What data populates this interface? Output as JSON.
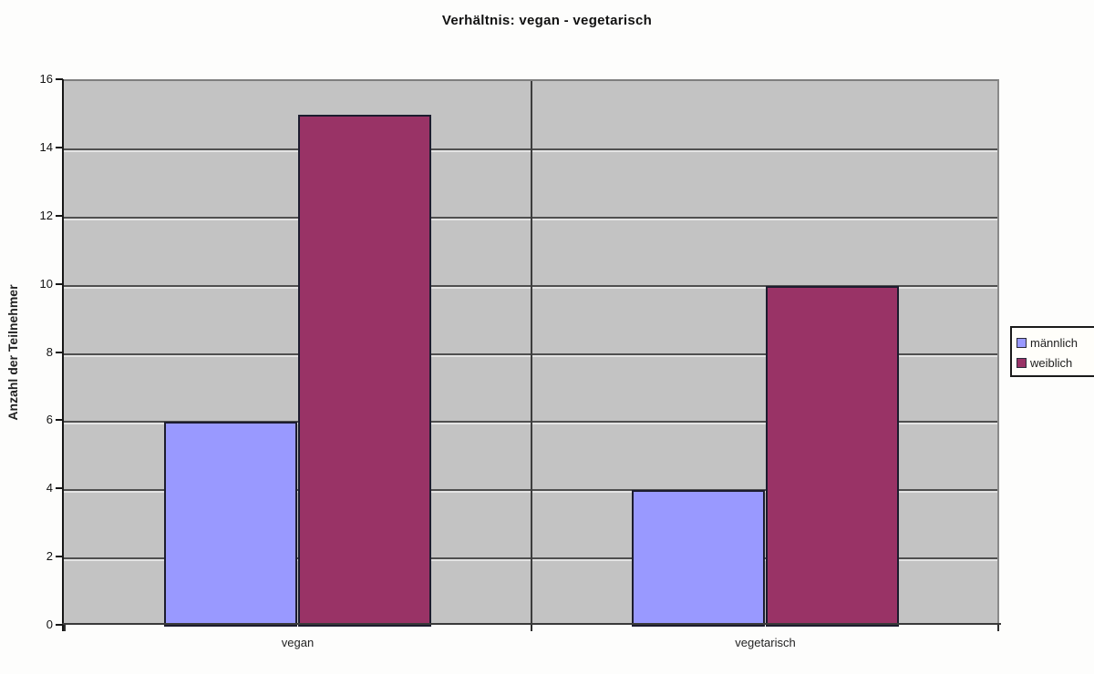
{
  "chart_data": {
    "type": "bar",
    "title": "Verhältnis: vegan - vegetarisch",
    "xlabel": "",
    "ylabel": "Anzahl der Teilnehmer",
    "categories": [
      "vegan",
      "vegetarisch"
    ],
    "series": [
      {
        "name": "männlich",
        "color": "#9999ff",
        "values": [
          6,
          4
        ]
      },
      {
        "name": "weiblich",
        "color": "#993366",
        "values": [
          15,
          10
        ]
      }
    ],
    "ylim": [
      0,
      16
    ],
    "yticks": [
      0,
      2,
      4,
      6,
      8,
      10,
      12,
      14,
      16
    ],
    "grid": true,
    "legend_position": "right",
    "plot_bg": "#c3c3c3"
  }
}
